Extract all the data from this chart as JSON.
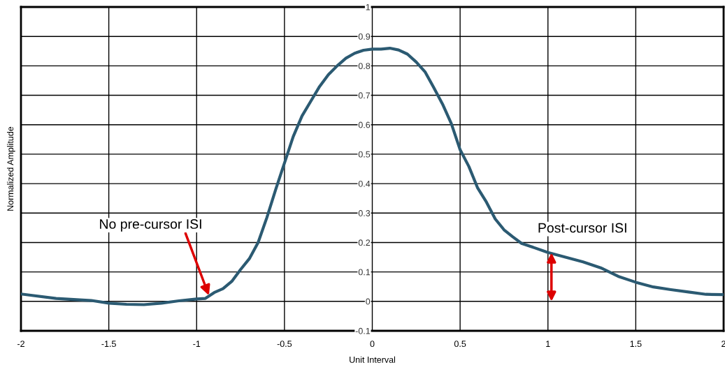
{
  "chart_data": {
    "type": "line",
    "xlabel": "Unit Interval",
    "ylabel": "Normalized Amplitude",
    "x": [
      -2,
      -1.8,
      -1.6,
      -1.5,
      -1.4,
      -1.3,
      -1.2,
      -1.1,
      -1.0,
      -0.95,
      -0.9,
      -0.85,
      -0.8,
      -0.75,
      -0.7,
      -0.65,
      -0.6,
      -0.55,
      -0.5,
      -0.45,
      -0.4,
      -0.35,
      -0.3,
      -0.25,
      -0.2,
      -0.15,
      -0.1,
      -0.05,
      0,
      0.05,
      0.1,
      0.15,
      0.2,
      0.25,
      0.3,
      0.35,
      0.4,
      0.45,
      0.5,
      0.55,
      0.6,
      0.65,
      0.7,
      0.75,
      0.8,
      0.85,
      0.9,
      1.0,
      1.1,
      1.2,
      1.3,
      1.4,
      1.5,
      1.6,
      1.7,
      1.8,
      1.9,
      2.0
    ],
    "series": [
      {
        "color": "#2b5a72",
        "values": [
          0.025,
          0.01,
          0.003,
          -0.006,
          -0.01,
          -0.011,
          -0.006,
          0.002,
          0.008,
          0.01,
          0.03,
          0.043,
          0.068,
          0.108,
          0.145,
          0.2,
          0.285,
          0.38,
          0.47,
          0.56,
          0.63,
          0.68,
          0.73,
          0.77,
          0.8,
          0.826,
          0.843,
          0.853,
          0.857,
          0.857,
          0.86,
          0.854,
          0.84,
          0.813,
          0.78,
          0.726,
          0.67,
          0.604,
          0.515,
          0.458,
          0.385,
          0.337,
          0.28,
          0.243,
          0.219,
          0.197,
          0.187,
          0.166,
          0.15,
          0.134,
          0.114,
          0.085,
          0.065,
          0.049,
          0.04,
          0.032,
          0.024,
          0.023
        ]
      }
    ],
    "xlim": [
      -2,
      2
    ],
    "xticks": [
      -2,
      -1.5,
      -1,
      -0.5,
      0,
      0.5,
      1,
      1.5,
      2
    ],
    "ylim": [
      -0.1,
      1
    ],
    "yticks": [
      -0.1,
      0,
      0.1,
      0.2,
      0.3,
      0.4,
      0.5,
      0.6,
      0.7,
      0.8,
      0.9,
      1
    ],
    "grid": true,
    "legend": false,
    "marker": "none",
    "line_style": "solid",
    "annotations": [
      {
        "text": "No pre-cursor ISI",
        "x": -0.93,
        "y": 0.02
      },
      {
        "text": "Post-cursor ISI",
        "x": 1.02,
        "y": 0.165
      }
    ]
  }
}
